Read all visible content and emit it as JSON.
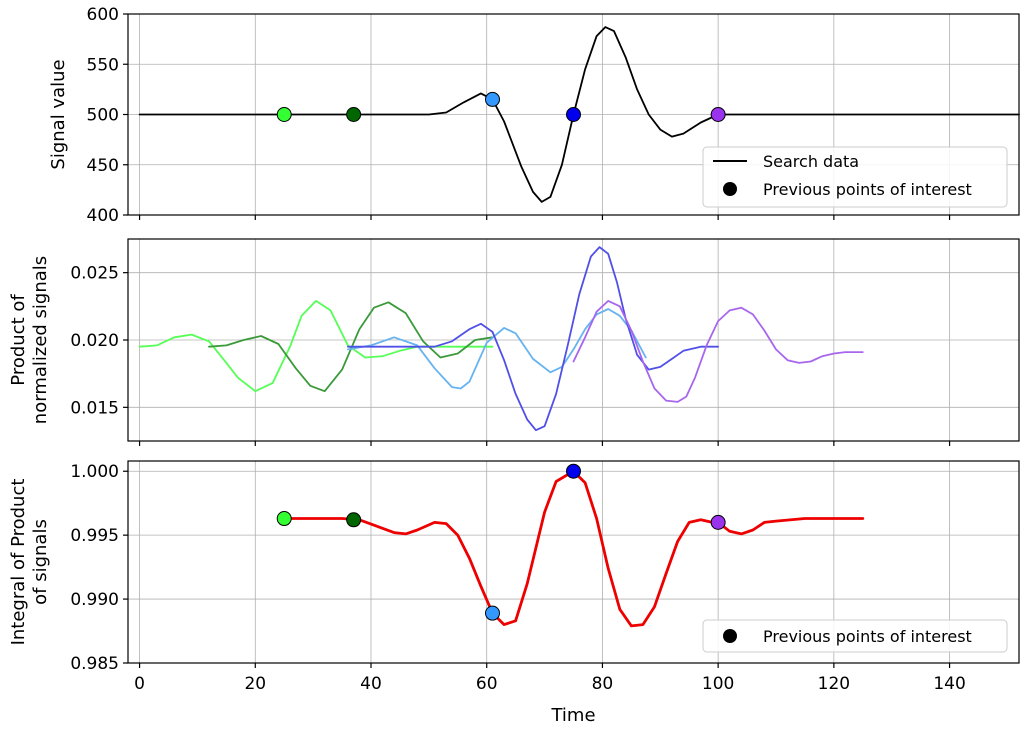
{
  "chart_data": [
    {
      "type": "line",
      "ylabel": "Signal value",
      "xlim": [
        -2,
        152
      ],
      "ylim": [
        400,
        600
      ],
      "yticks": [
        400,
        450,
        500,
        550,
        600
      ],
      "yticklabels": [
        "400",
        "450",
        "500",
        "550",
        "600"
      ],
      "grid": true,
      "legend_position": "bottom-right",
      "series": [
        {
          "name": "Search data",
          "color": "#000000",
          "x": [
            0,
            40,
            50,
            53,
            56,
            59,
            61,
            63,
            66,
            68,
            69.5,
            71,
            73,
            75,
            77,
            79,
            80.5,
            82,
            84,
            86,
            88,
            90,
            92,
            94,
            97,
            100,
            101,
            102,
            105,
            152
          ],
          "y": [
            500,
            500,
            500,
            502,
            512,
            521,
            515,
            493,
            448,
            423,
            413,
            418,
            450,
            500,
            545,
            578,
            587,
            583,
            557,
            525,
            500,
            485,
            478,
            481,
            492,
            500,
            500,
            500,
            500,
            500
          ]
        }
      ],
      "points": {
        "name": "Previous points of interest",
        "x": [
          25,
          37,
          61,
          75,
          100
        ],
        "y": [
          500,
          500,
          515,
          500,
          500
        ],
        "colors": [
          "#33ff33",
          "#006600",
          "#3399ff",
          "#0000ee",
          "#9933ee"
        ]
      }
    },
    {
      "type": "line",
      "ylabel": "Product of\nnormalized signals",
      "ylabel_lines": [
        "Product of",
        "normalized signals"
      ],
      "xlim": [
        -2,
        152
      ],
      "ylim": [
        0.0125,
        0.0275
      ],
      "yticks": [
        0.015,
        0.02,
        0.025
      ],
      "yticklabels": [
        "0.015",
        "0.020",
        "0.025"
      ],
      "grid": true,
      "series": [
        {
          "color": "#55ff55",
          "x": [
            0,
            3,
            6,
            9,
            12,
            15,
            17,
            20,
            23,
            26,
            28,
            30.5,
            33,
            36,
            39,
            42,
            45,
            48,
            51,
            54,
            57,
            60,
            61
          ],
          "y": [
            0.0195,
            0.0196,
            0.0202,
            0.0204,
            0.0199,
            0.0183,
            0.0172,
            0.0162,
            0.0168,
            0.0195,
            0.0218,
            0.0229,
            0.0222,
            0.0196,
            0.0187,
            0.0188,
            0.0192,
            0.0195,
            0.0195,
            0.0195,
            0.0195,
            0.0195,
            0.0195
          ]
        },
        {
          "color": "#3a9a3a",
          "x": [
            12,
            15,
            18,
            21,
            24,
            27,
            29.5,
            32,
            35,
            38,
            40.5,
            43,
            46,
            49,
            52,
            55,
            58,
            61
          ],
          "y": [
            0.0195,
            0.0196,
            0.02,
            0.0203,
            0.0197,
            0.0179,
            0.0166,
            0.0162,
            0.0178,
            0.0208,
            0.0224,
            0.0228,
            0.022,
            0.0199,
            0.0187,
            0.019,
            0.02,
            0.0202
          ]
        },
        {
          "color": "#66b3f0",
          "x": [
            36,
            40,
            44,
            48,
            51,
            54,
            55.5,
            57,
            60,
            63,
            65,
            68,
            71,
            73,
            75,
            77,
            79,
            81,
            83,
            85,
            87.5
          ],
          "y": [
            0.0193,
            0.0196,
            0.0202,
            0.0196,
            0.0179,
            0.0165,
            0.0164,
            0.0169,
            0.0198,
            0.0209,
            0.0205,
            0.0186,
            0.0176,
            0.018,
            0.0193,
            0.0208,
            0.0219,
            0.0223,
            0.0218,
            0.0207,
            0.0187
          ]
        },
        {
          "color": "#5050e8",
          "x": [
            36,
            39,
            42,
            45,
            48,
            51,
            54,
            57,
            59,
            61,
            63,
            65,
            67,
            68.5,
            70,
            72,
            74,
            76,
            78,
            79.5,
            81,
            82.5,
            84,
            86,
            88,
            90,
            92,
            94,
            97,
            100
          ],
          "y": [
            0.0195,
            0.0195,
            0.0195,
            0.0195,
            0.0195,
            0.0195,
            0.0199,
            0.0208,
            0.0212,
            0.0206,
            0.0185,
            0.016,
            0.0141,
            0.0133,
            0.0136,
            0.016,
            0.0196,
            0.0234,
            0.0262,
            0.0269,
            0.0264,
            0.0243,
            0.0216,
            0.0189,
            0.0178,
            0.018,
            0.0186,
            0.0192,
            0.0195,
            0.0195
          ]
        },
        {
          "color": "#a866ee",
          "x": [
            75,
            77,
            79,
            81,
            83,
            85,
            87,
            89,
            91,
            93,
            94.5,
            96,
            98,
            100,
            102,
            104,
            106,
            108,
            110,
            112,
            114,
            116,
            118,
            120,
            122,
            125
          ],
          "y": [
            0.0184,
            0.0202,
            0.0221,
            0.0229,
            0.0225,
            0.0207,
            0.0184,
            0.0164,
            0.0155,
            0.0154,
            0.0158,
            0.0172,
            0.0196,
            0.0214,
            0.0222,
            0.0224,
            0.0219,
            0.0207,
            0.0193,
            0.0185,
            0.0183,
            0.0184,
            0.0188,
            0.019,
            0.0191,
            0.0191
          ]
        }
      ]
    },
    {
      "type": "line",
      "ylabel": "Integral of Product\nof signals",
      "ylabel_lines": [
        "Integral of Product",
        "of signals"
      ],
      "xlabel": "Time",
      "xlim": [
        -2,
        152
      ],
      "ylim": [
        0.985,
        1.0008
      ],
      "yticks": [
        0.985,
        0.99,
        0.995,
        1.0
      ],
      "yticklabels": [
        "0.985",
        "0.990",
        "0.995",
        "1.000"
      ],
      "xticks": [
        0,
        20,
        40,
        60,
        80,
        100,
        120,
        140
      ],
      "xticklabels": [
        "0",
        "20",
        "40",
        "60",
        "80",
        "100",
        "120",
        "140"
      ],
      "grid": true,
      "legend_position": "bottom-right",
      "series": [
        {
          "color": "#ee0000",
          "x": [
            25,
            30,
            35,
            38,
            41,
            44,
            46,
            48,
            51,
            53,
            55,
            57,
            59,
            61,
            63,
            65,
            67,
            70,
            72,
            75,
            77,
            79,
            81,
            83,
            85,
            87,
            89,
            91,
            93,
            95,
            97,
            99,
            100,
            102,
            104,
            106,
            108,
            110,
            115,
            120,
            125
          ],
          "y": [
            0.9963,
            0.9963,
            0.9963,
            0.9962,
            0.9957,
            0.9952,
            0.9951,
            0.9954,
            0.996,
            0.9959,
            0.995,
            0.9932,
            0.991,
            0.9889,
            0.988,
            0.9883,
            0.9912,
            0.9968,
            0.9992,
            1.0,
            0.9991,
            0.9963,
            0.9924,
            0.9892,
            0.9879,
            0.988,
            0.9894,
            0.992,
            0.9945,
            0.996,
            0.9962,
            0.996,
            0.996,
            0.9953,
            0.9951,
            0.9954,
            0.996,
            0.9961,
            0.9963,
            0.9963,
            0.9963
          ]
        }
      ],
      "points": {
        "name": "Previous points of interest",
        "x": [
          25,
          37,
          61,
          75,
          100
        ],
        "y": [
          0.9963,
          0.9962,
          0.9889,
          1.0,
          0.996
        ],
        "colors": [
          "#33ff33",
          "#006600",
          "#3399ff",
          "#0000ee",
          "#9933ee"
        ]
      }
    }
  ],
  "legends": {
    "top": {
      "line_label": "Search data",
      "marker_label": "Previous points of interest"
    },
    "bottom": {
      "marker_label": "Previous points of interest"
    }
  }
}
